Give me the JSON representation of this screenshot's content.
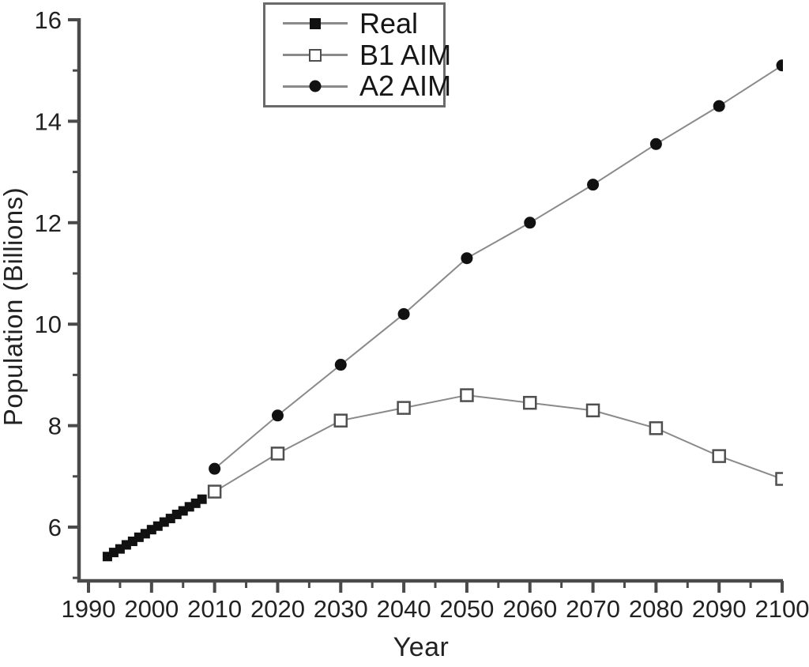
{
  "chart_data": {
    "type": "line",
    "title": "",
    "xlabel": "Year",
    "ylabel": "Population (Billions)",
    "xlim": [
      1988.5,
      2100.5
    ],
    "ylim": [
      4.9,
      16
    ],
    "x_major_ticks": [
      1990,
      2000,
      2010,
      2020,
      2030,
      2040,
      2050,
      2060,
      2070,
      2080,
      2090,
      2100
    ],
    "x_minor_ticks": [
      1995,
      2005,
      2015,
      2025,
      2035,
      2045,
      2055,
      2065,
      2075,
      2085,
      2095
    ],
    "y_major_ticks": [
      6,
      8,
      10,
      12,
      14,
      16
    ],
    "y_minor_ticks": [
      5,
      7,
      9,
      11,
      13,
      15
    ],
    "grid": false,
    "legend_position": "top-center-inside",
    "colors": {
      "marker": "#111111",
      "open_marker_fill": "#ffffff",
      "open_marker_stroke": "#4f4f4f",
      "line": "#8a8a8a",
      "axis": "#4a4a4a",
      "text": "#222222",
      "background": "#ffffff"
    },
    "series": [
      {
        "name": "Real",
        "marker": "filled-square",
        "x": [
          1993,
          1994,
          1995,
          1996,
          1997,
          1998,
          1999,
          2000,
          2001,
          2002,
          2003,
          2004,
          2005,
          2006,
          2007,
          2008
        ],
        "values": [
          5.42,
          5.5,
          5.57,
          5.65,
          5.72,
          5.8,
          5.87,
          5.95,
          6.02,
          6.1,
          6.17,
          6.25,
          6.32,
          6.4,
          6.47,
          6.55
        ]
      },
      {
        "name": "B1 AIM",
        "marker": "open-square",
        "x": [
          2010,
          2020,
          2030,
          2040,
          2050,
          2060,
          2070,
          2080,
          2090,
          2100
        ],
        "values": [
          6.7,
          7.45,
          8.1,
          8.35,
          8.6,
          8.45,
          8.3,
          7.95,
          7.4,
          6.95
        ]
      },
      {
        "name": "A2 AIM",
        "marker": "filled-circle",
        "x": [
          2010,
          2020,
          2030,
          2040,
          2050,
          2060,
          2070,
          2080,
          2090,
          2100
        ],
        "values": [
          7.15,
          8.2,
          9.2,
          10.2,
          11.3,
          12.0,
          12.75,
          13.55,
          14.3,
          15.1
        ]
      }
    ]
  }
}
